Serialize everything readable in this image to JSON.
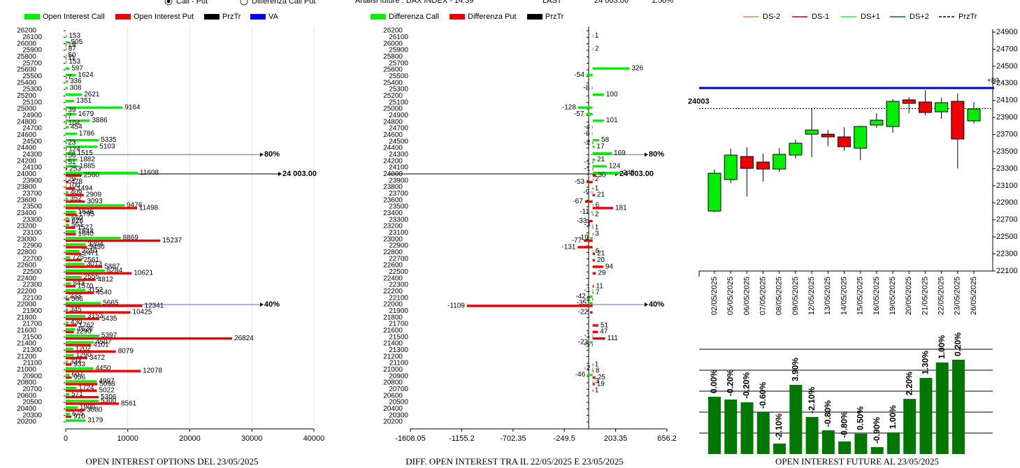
{
  "header": {
    "options": [
      "Call - Put",
      "Differenza Call Put"
    ],
    "info": "Analisi future : DAX INDEX - 14:39",
    "last_label": "LAST",
    "last": "24 003.00",
    "change": "1.50%"
  },
  "chart_data": [
    {
      "type": "hbar",
      "title": "OPEN INTEREST OPTIONS DEL 23/05/2025",
      "categories": [
        26200,
        26100,
        26000,
        25900,
        25800,
        25700,
        25600,
        25500,
        25400,
        25300,
        25200,
        25100,
        25000,
        24900,
        24800,
        24700,
        24600,
        24500,
        24400,
        24300,
        24200,
        24100,
        24000,
        23900,
        23800,
        23700,
        23600,
        23500,
        23400,
        23300,
        23200,
        23100,
        23000,
        22900,
        22800,
        22700,
        22600,
        22500,
        22400,
        22300,
        22200,
        22100,
        22000,
        21900,
        21800,
        21700,
        21600,
        21500,
        21400,
        21300,
        21200,
        21100,
        21000,
        20900,
        20800,
        20700,
        20600,
        20500,
        20400,
        20300,
        20200
      ],
      "series": [
        {
          "name": "Open Interest Call",
          "color": "#00ee00",
          "values": [
            null,
            153,
            505,
            87,
            50,
            153,
            597,
            1624,
            336,
            308,
            2621,
            1351,
            9164,
            1679,
            3886,
            454,
            1786,
            5335,
            5103,
            1515,
            1882,
            1885,
            11608,
            29,
            100,
            409,
            352,
            9476,
            1636,
            550,
            561,
            1644,
            8869,
            3204,
            2210,
            725,
            3013,
            6284,
            2555,
            843,
            3152,
            233,
            5665,
            345,
            3152,
            430,
            1526,
            5397,
            4507,
            1202,
            1290,
            334,
            4450,
            607,
            4997,
            1724,
            571,
            5300,
            1900,
            675,
            3179
          ]
        },
        {
          "name": "Open Interest Put",
          "color": "#ee0000",
          "values": [
            null,
            null,
            19,
            null,
            11,
            null,
            null,
            7,
            null,
            null,
            null,
            null,
            39,
            7,
            104,
            null,
            null,
            23,
            124,
            56,
            51,
            253,
            2560,
            478,
            1494,
            2909,
            3093,
            11498,
            1795,
            626,
            1527,
            1640,
            15237,
            3430,
            2471,
            2561,
            5887,
            10621,
            4812,
            1570,
            4540,
            566,
            12341,
            10425,
            5435,
            1762,
            1290,
            26824,
            4101,
            8079,
            3472,
            933,
            12078,
            956,
            5098,
            5022,
            5306,
            8561,
            3080,
            910,
            null
          ]
        }
      ],
      "extra_legend": [
        {
          "name": "PrzTr",
          "color": "#000000"
        },
        {
          "name": "VA",
          "color": "#0000ee"
        }
      ],
      "xlim": [
        0,
        40000
      ],
      "xticks": [
        0,
        10000,
        20000,
        30000,
        40000
      ],
      "annotations": [
        {
          "text": "80%",
          "at": 24300,
          "color": "#5a6ad8"
        },
        {
          "text": "40%",
          "at": 22000,
          "color": "#5a6ad8"
        },
        {
          "text": "24 003.00",
          "at": 24003,
          "color": "#000000"
        }
      ]
    },
    {
      "type": "hbar",
      "title": "DIFF. OPEN INTEREST TRA IL 22/05/2025 E 23/05/2025",
      "categories": [
        26200,
        26100,
        26000,
        25900,
        25800,
        25700,
        25600,
        25500,
        25400,
        25300,
        25200,
        25100,
        25000,
        24900,
        24800,
        24700,
        24600,
        24500,
        24400,
        24300,
        24200,
        24100,
        24000,
        23900,
        23800,
        23700,
        23600,
        23500,
        23400,
        23300,
        23200,
        23100,
        23000,
        22900,
        22800,
        22700,
        22600,
        22500,
        22400,
        22300,
        22200,
        22100,
        22000,
        21900,
        21800,
        21700,
        21600,
        21500,
        21400,
        21300,
        21200,
        21100,
        21000,
        20900,
        20800,
        20700,
        20600,
        20500,
        20400,
        20300,
        20200
      ],
      "series": [
        {
          "name": "Differenza Call",
          "color": "#00ee00",
          "values": [
            null,
            1,
            null,
            2,
            null,
            null,
            326,
            -54,
            null,
            -8,
            100,
            null,
            -128,
            -57,
            101,
            -4,
            -6,
            58,
            17,
            169,
            21,
            124,
            248,
            2,
            null,
            -9,
            null,
            6,
            -11,
            null,
            -3,
            null,
            -19,
            null,
            6,
            null,
            null,
            null,
            null,
            null,
            -1,
            -42,
            -35,
            null,
            null,
            null,
            null,
            -1,
            -22,
            null,
            null,
            null,
            -2,
            -46,
            3,
            null,
            null,
            null,
            null,
            null,
            null
          ]
        },
        {
          "name": "Differenza Put",
          "color": "#ee0000",
          "values": [
            null,
            null,
            null,
            null,
            null,
            null,
            null,
            null,
            null,
            null,
            null,
            null,
            null,
            null,
            null,
            null,
            null,
            -2,
            null,
            null,
            -1,
            -1,
            30,
            -53,
            1,
            21,
            -67,
            181,
            2,
            -33,
            1,
            3,
            -77,
            -131,
            21,
            20,
            94,
            29,
            null,
            11,
            7,
            -2,
            -1109,
            -22,
            null,
            51,
            47,
            111,
            -5,
            null,
            null,
            1,
            8,
            25,
            19,
            1,
            null,
            null,
            null,
            null,
            null
          ]
        }
      ],
      "extra_legend": [
        {
          "name": "PrzTr",
          "color": "#000000"
        }
      ],
      "xlim": [
        -1608.05,
        656.2
      ],
      "xticks": [
        -1608.05,
        -1155.2,
        -702.35,
        -249.5,
        203.35,
        656.2
      ],
      "annotations": [
        {
          "text": "80%",
          "at": 24300,
          "color": "#5a6ad8"
        },
        {
          "text": "40%",
          "at": 22000,
          "color": "#5a6ad8"
        },
        {
          "text": "24 003.00",
          "at": 24003,
          "color": "#000000"
        }
      ]
    },
    {
      "type": "candlestick",
      "title": "OPEN INTEREST FUTURE AL 23/05/2025",
      "categories": [
        "02/05/2025",
        "05/05/2025",
        "06/05/2025",
        "07/05/2025",
        "08/05/2025",
        "09/05/2025",
        "12/05/2025",
        "13/05/2025",
        "14/05/2025",
        "15/05/2025",
        "16/05/2025",
        "19/05/2025",
        "20/05/2025",
        "21/05/2025",
        "22/05/2025",
        "23/05/2025",
        "26/05/2025"
      ],
      "open": [
        22803,
        23172,
        23442,
        23377,
        23295,
        23459,
        23704,
        23704,
        23672,
        23540,
        23811,
        23794,
        24106,
        24081,
        23966,
        24089,
        23860
      ],
      "high": [
        23290,
        23532,
        23549,
        23475,
        23540,
        23639,
        24007,
        23753,
        23786,
        23802,
        23950,
        24114,
        24138,
        24220,
        24130,
        24179,
        24081
      ],
      "low": [
        22790,
        23131,
        22975,
        23147,
        23262,
        23418,
        23434,
        23565,
        23508,
        23401,
        23778,
        23721,
        23950,
        23925,
        23884,
        23303,
        23827
      ],
      "close": [
        23246,
        23459,
        23303,
        23295,
        23467,
        23598,
        23753,
        23672,
        23557,
        23794,
        23868,
        24089,
        24065,
        23958,
        24073,
        23647,
        24000
      ],
      "up_color": "#00ee00",
      "down_color": "#ee0000",
      "legend": [
        {
          "name": "DS-2",
          "color": "#f08040",
          "dash": false
        },
        {
          "name": "DS-1",
          "color": "#cc0000",
          "dash": false
        },
        {
          "name": "DS+1",
          "color": "#33ee33",
          "dash": false
        },
        {
          "name": "DS+2",
          "color": "#007700",
          "dash": false
        },
        {
          "name": "PrzTr",
          "color": "#000000",
          "dash": true
        }
      ],
      "ylim": [
        22100,
        24900
      ],
      "yticks": [
        22100,
        22300,
        22500,
        22700,
        22900,
        23100,
        23300,
        23500,
        23700,
        23900,
        24100,
        24300,
        24500,
        24700,
        24900
      ],
      "price_line": {
        "text": "24003",
        "at": 24003
      },
      "va_line": {
        "text": "+80",
        "at": 24245,
        "color": "#0000cc"
      }
    },
    {
      "type": "bar",
      "color": "#007700",
      "open_interest": [
        2.73,
        2.6,
        2.47,
        2.0,
        0.5,
        3.3,
        1.77,
        1.13,
        0.6,
        0.97,
        0.33,
        1.03,
        2.63,
        3.63,
        4.37,
        4.5
      ],
      "values": [
        0,
        -0.2,
        -0.2,
        -0.6,
        -2.1,
        3.9,
        -2.1,
        -0.8,
        -0.8,
        0.5,
        -0.9,
        1.0,
        2.2,
        1.3,
        1.0,
        0.2
      ],
      "value_labels": [
        "0.00%",
        "-0.20%",
        "-0.20%",
        "-0.60%",
        "-2.10%",
        "3.90%",
        "-2.10%",
        "-0.80%",
        "-0.80%",
        "0.50%",
        "-0.90%",
        "1.00%",
        "2.20%",
        "1.30%",
        "1.00%",
        "0.20%"
      ],
      "ylim": [
        0,
        5
      ],
      "grid_lines": [
        1,
        2,
        3,
        4,
        5
      ]
    }
  ]
}
